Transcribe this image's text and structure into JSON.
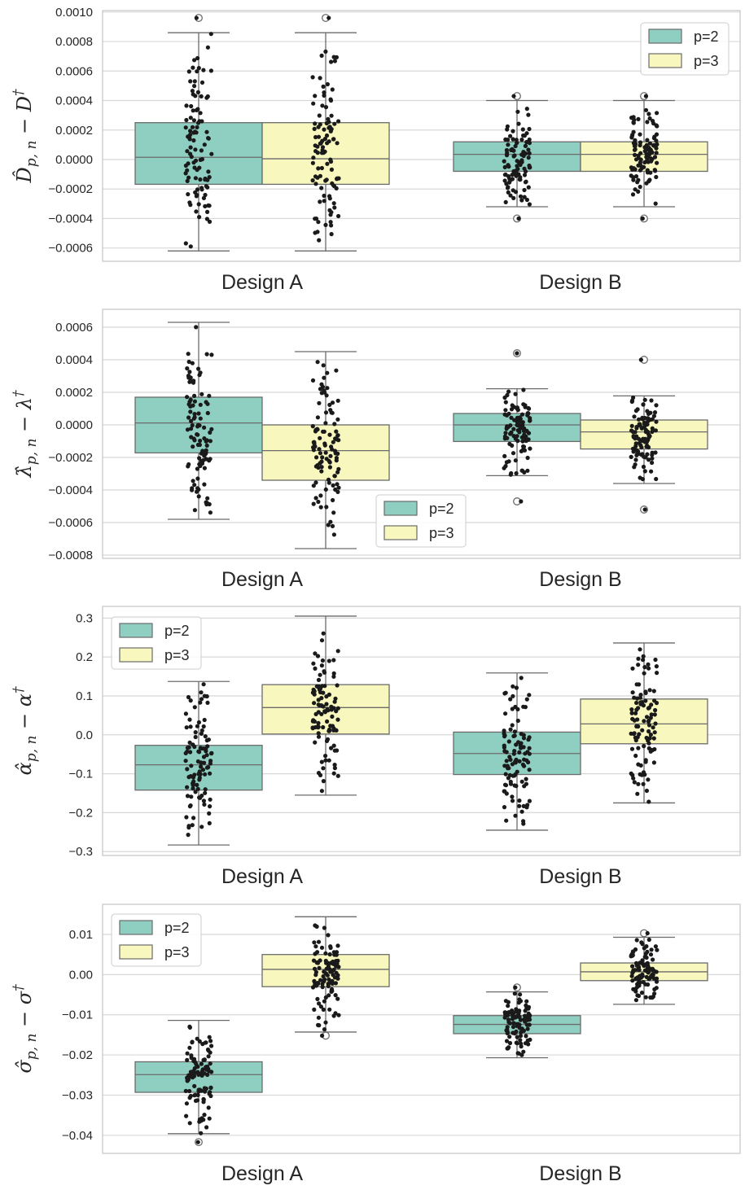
{
  "colors": {
    "p2": "#8fcfc1",
    "p3": "#f7f7be",
    "edge": "#6b6b6b",
    "grid": "#d8d8d8",
    "point": "#1a1a1a"
  },
  "chart_data": [
    {
      "type": "box",
      "ylabel": {
        "main": "D̂",
        "sub": "p, n",
        "rest": " − D",
        "sup": "†"
      },
      "categories": [
        "Design A",
        "Design B"
      ],
      "yticks": [
        0.001,
        0.0008,
        0.0006,
        0.0004,
        0.0002,
        0.0,
        -0.0002,
        -0.0004,
        -0.0006
      ],
      "ytick_labels": [
        "0.0010",
        "0.0008",
        "0.0006",
        "0.0004",
        "0.0002",
        "0.0000",
        "−0.0002",
        "−0.0004",
        "−0.0006"
      ],
      "ylim": [
        -0.00069,
        0.00101
      ],
      "legend": {
        "position": "upper right",
        "entries": [
          "p=2",
          "p=3"
        ]
      },
      "series": [
        {
          "name": "p=2",
          "boxes": [
            {
              "category": "Design A",
              "q1": -0.000168,
              "median": 1.5e-05,
              "q3": 0.00025,
              "whisker_low": -0.00062,
              "whisker_high": 0.00086,
              "outliers": [
                0.00096
              ]
            },
            {
              "category": "Design B",
              "q1": -8e-05,
              "median": 3.5e-05,
              "q3": 0.00012,
              "whisker_low": -0.00032,
              "whisker_high": 0.0004,
              "outliers": [
                0.00043,
                -0.0004
              ]
            }
          ]
        },
        {
          "name": "p=3",
          "boxes": [
            {
              "category": "Design A",
              "q1": -0.000168,
              "median": 5e-06,
              "q3": 0.00025,
              "whisker_low": -0.00062,
              "whisker_high": 0.00086,
              "outliers": [
                0.00096
              ]
            },
            {
              "category": "Design B",
              "q1": -8e-05,
              "median": 3.5e-05,
              "q3": 0.00012,
              "whisker_low": -0.00032,
              "whisker_high": 0.0004,
              "outliers": [
                0.00043,
                -0.0004
              ]
            }
          ]
        }
      ]
    },
    {
      "type": "box",
      "ylabel": {
        "main": "λ̂",
        "sub": "p, n",
        "rest": " − λ",
        "sup": "†"
      },
      "categories": [
        "Design A",
        "Design B"
      ],
      "yticks": [
        0.0006,
        0.0004,
        0.0002,
        0.0,
        -0.0002,
        -0.0004,
        -0.0006,
        -0.0008
      ],
      "ytick_labels": [
        "0.0006",
        "0.0004",
        "0.0002",
        "0.0000",
        "−0.0002",
        "−0.0004",
        "−0.0006",
        "−0.0008"
      ],
      "ylim": [
        -0.00082,
        0.00071
      ],
      "legend": {
        "position": "lower center",
        "entries": [
          "p=2",
          "p=3"
        ]
      },
      "series": [
        {
          "name": "p=2",
          "boxes": [
            {
              "category": "Design A",
              "q1": -0.000172,
              "median": 1.2e-05,
              "q3": 0.00017,
              "whisker_low": -0.00058,
              "whisker_high": 0.00063,
              "outliers": []
            },
            {
              "category": "Design B",
              "q1": -0.000102,
              "median": 0.0,
              "q3": 7e-05,
              "whisker_low": -0.000312,
              "whisker_high": 0.000222,
              "outliers": [
                0.00044,
                -0.00047
              ]
            }
          ]
        },
        {
          "name": "p=3",
          "boxes": [
            {
              "category": "Design A",
              "q1": -0.00034,
              "median": -0.000158,
              "q3": 0.0,
              "whisker_low": -0.00076,
              "whisker_high": 0.00045,
              "outliers": []
            },
            {
              "category": "Design B",
              "q1": -0.000148,
              "median": -4.3e-05,
              "q3": 3e-05,
              "whisker_low": -0.00036,
              "whisker_high": 0.000178,
              "outliers": [
                0.0004,
                -0.00052
              ]
            }
          ]
        }
      ]
    },
    {
      "type": "box",
      "ylabel": {
        "main": "α̂",
        "sub": "p, n",
        "rest": " − α",
        "sup": "†"
      },
      "categories": [
        "Design A",
        "Design B"
      ],
      "yticks": [
        0.3,
        0.2,
        0.1,
        0.0,
        -0.1,
        -0.2,
        -0.3
      ],
      "ytick_labels": [
        "0.3",
        "0.2",
        "0.1",
        "0.0",
        "−0.1",
        "−0.2",
        "−0.3"
      ],
      "ylim": [
        -0.31,
        0.33
      ],
      "legend": {
        "position": "upper left",
        "entries": [
          "p=2",
          "p=3"
        ]
      },
      "series": [
        {
          "name": "p=2",
          "boxes": [
            {
              "category": "Design A",
              "q1": -0.142,
              "median": -0.077,
              "q3": -0.027,
              "whisker_low": -0.283,
              "whisker_high": 0.137,
              "outliers": []
            },
            {
              "category": "Design B",
              "q1": -0.102,
              "median": -0.048,
              "q3": 0.007,
              "whisker_low": -0.245,
              "whisker_high": 0.159,
              "outliers": []
            }
          ]
        },
        {
          "name": "p=3",
          "boxes": [
            {
              "category": "Design A",
              "q1": 0.002,
              "median": 0.07,
              "q3": 0.129,
              "whisker_low": -0.155,
              "whisker_high": 0.305,
              "outliers": []
            },
            {
              "category": "Design B",
              "q1": -0.023,
              "median": 0.028,
              "q3": 0.092,
              "whisker_low": -0.175,
              "whisker_high": 0.236,
              "outliers": []
            }
          ]
        }
      ]
    },
    {
      "type": "box",
      "ylabel": {
        "main": "σ̂",
        "sub": "p, n",
        "rest": " − σ",
        "sup": "†"
      },
      "categories": [
        "Design A",
        "Design B"
      ],
      "yticks": [
        0.01,
        0.0,
        -0.01,
        -0.02,
        -0.03,
        -0.04
      ],
      "ytick_labels": [
        "0.01",
        "0.00",
        "−0.01",
        "−0.02",
        "−0.03",
        "−0.04"
      ],
      "ylim": [
        -0.0445,
        0.0175
      ],
      "legend": {
        "position": "upper left",
        "entries": [
          "p=2",
          "p=3"
        ]
      },
      "series": [
        {
          "name": "p=2",
          "boxes": [
            {
              "category": "Design A",
              "q1": -0.0293,
              "median": -0.0249,
              "q3": -0.0217,
              "whisker_low": -0.0396,
              "whisker_high": -0.0114,
              "outliers": [
                -0.0417
              ]
            },
            {
              "category": "Design B",
              "q1": -0.0147,
              "median": -0.0124,
              "q3": -0.0102,
              "whisker_low": -0.0207,
              "whisker_high": -0.0043,
              "outliers": [
                -0.0032
              ]
            }
          ]
        },
        {
          "name": "p=3",
          "boxes": [
            {
              "category": "Design A",
              "q1": -0.003,
              "median": 0.0013,
              "q3": 0.005,
              "whisker_low": -0.0143,
              "whisker_high": 0.0144,
              "outliers": [
                -0.0152
              ]
            },
            {
              "category": "Design B",
              "q1": -0.0015,
              "median": 0.0007,
              "q3": 0.0029,
              "whisker_low": -0.0074,
              "whisker_high": 0.0093,
              "outliers": [
                0.0103
              ]
            }
          ]
        }
      ]
    }
  ]
}
